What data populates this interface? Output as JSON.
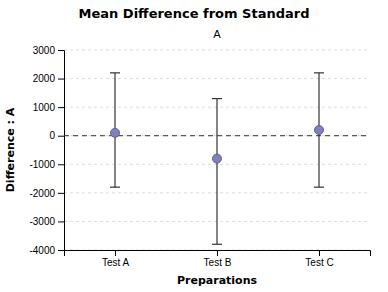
{
  "chart_data": {
    "type": "point",
    "title": "Mean Difference from Standard",
    "subtitle": "A",
    "xlabel": "Preparations",
    "ylabel": "Difference : A",
    "categories": [
      "Test A",
      "Test B",
      "Test C"
    ],
    "values": [
      100,
      -800,
      200
    ],
    "ci_low": [
      -1800,
      -3800,
      -1800
    ],
    "ci_high": [
      2200,
      1300,
      2200
    ],
    "color": "#8080BB",
    "marker": "circle",
    "reference_line": 0,
    "ylim": [
      -4000,
      3000
    ],
    "yticks": [
      -4000,
      -3000,
      -2000,
      -1000,
      0,
      1000,
      2000,
      3000
    ],
    "grid": true
  }
}
